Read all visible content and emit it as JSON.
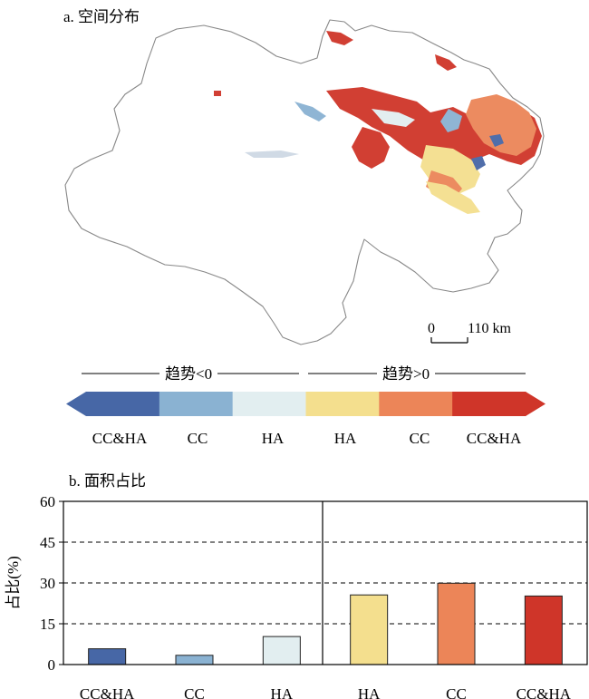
{
  "panel_a": {
    "title": "a. 空间分布",
    "scale_bar": {
      "start": "0",
      "end": "110 km"
    }
  },
  "legend": {
    "group_neg": "趋势<0",
    "group_pos": "趋势>0",
    "classes": [
      {
        "label": "CC&HA",
        "color": "#4767a6"
      },
      {
        "label": "CC",
        "color": "#8ab2d2"
      },
      {
        "label": "HA",
        "color": "#e2eef0"
      },
      {
        "label": "HA",
        "color": "#f4df8e"
      },
      {
        "label": "CC",
        "color": "#ec8558"
      },
      {
        "label": "CC&HA",
        "color": "#cf3529"
      }
    ]
  },
  "chart_data": {
    "type": "bar",
    "title": "b. 面积占比",
    "ylabel": "占比(%)",
    "xlabel": "",
    "categories": [
      "CC&HA",
      "CC",
      "HA",
      "HA",
      "CC",
      "CC&HA"
    ],
    "values": [
      5.8,
      3.4,
      10.3,
      25.6,
      29.9,
      25.2
    ],
    "colors": [
      "#4767a6",
      "#8ab2d2",
      "#e2eef0",
      "#f4df8e",
      "#ec8558",
      "#cf3529"
    ],
    "ylim": [
      0,
      60
    ],
    "yticks": [
      0,
      15,
      30,
      45,
      60
    ],
    "grid": "dashed at 15, 30, 45",
    "divider_between": [
      2,
      3
    ]
  }
}
